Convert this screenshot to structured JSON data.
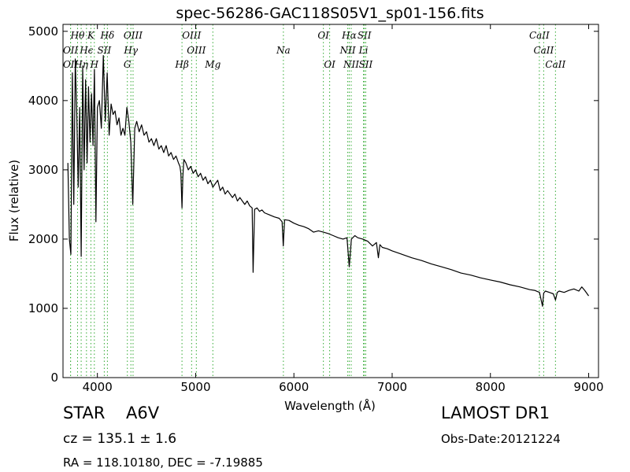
{
  "info": {
    "object_type": "STAR",
    "object_class": "A6V",
    "cz_text": "cz = 135.1 ± 1.6",
    "radec_text": "RA = 118.10180, DEC = -7.19885",
    "survey": "LAMOST DR1",
    "obs_date": "Obs-Date:20121224"
  },
  "chart_data": {
    "type": "line",
    "title": "spec-56286-GAC118S05V1_sp01-156.fits",
    "xlabel": "Wavelength (Å)",
    "ylabel": "Flux (relative)",
    "xlim": [
      3650,
      9100
    ],
    "ylim": [
      0,
      5100
    ],
    "xticks": [
      4000,
      5000,
      6000,
      7000,
      8000,
      9000
    ],
    "yticks": [
      0,
      1000,
      2000,
      3000,
      4000,
      5000
    ],
    "line_color": "#000000",
    "marker_color": "#33aa33",
    "spectrum": {
      "x": [
        3700,
        3715,
        3730,
        3745,
        3760,
        3775,
        3790,
        3805,
        3820,
        3835,
        3850,
        3865,
        3880,
        3895,
        3910,
        3925,
        3940,
        3955,
        3970,
        3985,
        4000,
        4020,
        4040,
        4060,
        4080,
        4100,
        4120,
        4140,
        4160,
        4180,
        4200,
        4220,
        4240,
        4260,
        4280,
        4300,
        4320,
        4340,
        4360,
        4380,
        4400,
        4425,
        4450,
        4475,
        4500,
        4525,
        4550,
        4575,
        4600,
        4625,
        4650,
        4675,
        4700,
        4725,
        4750,
        4775,
        4800,
        4825,
        4840,
        4850,
        4861,
        4870,
        4880,
        4900,
        4925,
        4950,
        4975,
        5000,
        5025,
        5050,
        5075,
        5100,
        5125,
        5150,
        5175,
        5200,
        5225,
        5250,
        5275,
        5300,
        5325,
        5350,
        5375,
        5400,
        5425,
        5450,
        5475,
        5500,
        5525,
        5550,
        5575,
        5585,
        5600,
        5625,
        5650,
        5675,
        5700,
        5750,
        5800,
        5850,
        5880,
        5892,
        5905,
        5950,
        6000,
        6050,
        6100,
        6150,
        6200,
        6250,
        6300,
        6350,
        6400,
        6450,
        6500,
        6540,
        6563,
        6585,
        6620,
        6650,
        6700,
        6750,
        6800,
        6840,
        6860,
        6875,
        6900,
        6950,
        7000,
        7100,
        7200,
        7300,
        7400,
        7500,
        7600,
        7700,
        7800,
        7900,
        8000,
        8100,
        8200,
        8300,
        8400,
        8450,
        8500,
        8530,
        8542,
        8560,
        8600,
        8640,
        8662,
        8680,
        8700,
        8750,
        8800,
        8850,
        8900,
        8930,
        8960,
        8980,
        9000
      ],
      "y": [
        3100,
        2000,
        1780,
        4400,
        2500,
        4600,
        3800,
        2750,
        3900,
        1750,
        4500,
        3000,
        4300,
        3100,
        4200,
        3400,
        4100,
        3350,
        4450,
        2250,
        3900,
        4000,
        3600,
        4650,
        3700,
        4400,
        3500,
        3950,
        3800,
        3850,
        3650,
        3750,
        3500,
        3600,
        3500,
        3900,
        3700,
        3400,
        2500,
        3600,
        3700,
        3550,
        3650,
        3500,
        3550,
        3400,
        3450,
        3350,
        3450,
        3300,
        3350,
        3250,
        3350,
        3200,
        3250,
        3150,
        3200,
        3100,
        3050,
        2950,
        2450,
        2900,
        3150,
        3100,
        3000,
        3050,
        2950,
        3000,
        2900,
        2950,
        2850,
        2900,
        2800,
        2850,
        2750,
        2800,
        2850,
        2700,
        2750,
        2650,
        2700,
        2650,
        2600,
        2650,
        2550,
        2600,
        2550,
        2500,
        2550,
        2480,
        2450,
        1520,
        2430,
        2450,
        2400,
        2420,
        2380,
        2350,
        2320,
        2300,
        2250,
        1900,
        2280,
        2270,
        2230,
        2200,
        2180,
        2150,
        2100,
        2120,
        2100,
        2080,
        2050,
        2020,
        2000,
        2020,
        1600,
        2000,
        2050,
        2020,
        2000,
        1970,
        1900,
        1950,
        1730,
        1920,
        1880,
        1860,
        1830,
        1780,
        1730,
        1690,
        1640,
        1600,
        1560,
        1510,
        1480,
        1440,
        1410,
        1380,
        1340,
        1310,
        1270,
        1260,
        1230,
        1030,
        1220,
        1250,
        1230,
        1210,
        1120,
        1230,
        1250,
        1230,
        1260,
        1280,
        1250,
        1310,
        1260,
        1220,
        1180
      ]
    },
    "lines": [
      {
        "label": "Hθ",
        "x": 3798,
        "row": 1
      },
      {
        "label": "K",
        "x": 3934,
        "row": 1
      },
      {
        "label": "Hδ",
        "x": 4102,
        "row": 1
      },
      {
        "label": "OIII",
        "x": 4363,
        "row": 1
      },
      {
        "label": "OIII",
        "x": 4959,
        "row": 1
      },
      {
        "label": "OI",
        "x": 6300,
        "row": 1
      },
      {
        "label": "Hα",
        "x": 6563,
        "row": 1
      },
      {
        "label": "SII",
        "x": 6717,
        "row": 1
      },
      {
        "label": "CaII",
        "x": 8498,
        "row": 1
      },
      {
        "label": "OII",
        "x": 3727,
        "row": 2
      },
      {
        "label": "Hϵ",
        "x": 3889,
        "row": 2
      },
      {
        "label": "SII",
        "x": 4070,
        "row": 2
      },
      {
        "label": "Hγ",
        "x": 4341,
        "row": 2
      },
      {
        "label": "OIII",
        "x": 5007,
        "row": 2
      },
      {
        "label": "Na",
        "x": 5893,
        "row": 2
      },
      {
        "label": "NII",
        "x": 6548,
        "row": 2
      },
      {
        "label": "Li",
        "x": 6708,
        "row": 2
      },
      {
        "label": "CaII",
        "x": 8542,
        "row": 2
      },
      {
        "label": "OII",
        "x": 3727,
        "row": 3
      },
      {
        "label": "Hη",
        "x": 3835,
        "row": 3
      },
      {
        "label": "H",
        "x": 3969,
        "row": 3
      },
      {
        "label": "G",
        "x": 4305,
        "row": 3
      },
      {
        "label": "Hβ",
        "x": 4861,
        "row": 3
      },
      {
        "label": "Mg",
        "x": 5175,
        "row": 3
      },
      {
        "label": "OI",
        "x": 6364,
        "row": 3
      },
      {
        "label": "NII",
        "x": 6583,
        "row": 3
      },
      {
        "label": "SII",
        "x": 6731,
        "row": 3
      },
      {
        "label": "CaII",
        "x": 8662,
        "row": 3
      }
    ]
  }
}
